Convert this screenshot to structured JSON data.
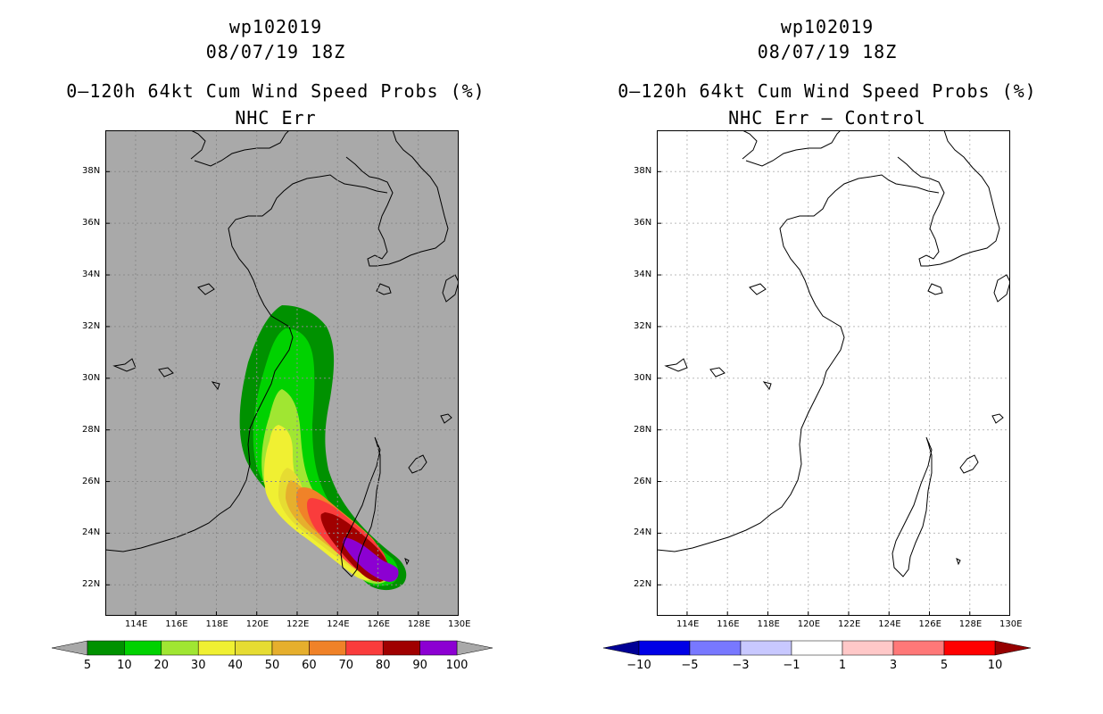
{
  "left": {
    "title_line1": "wp102019",
    "title_line2": "08/07/19 18Z",
    "title_line3": "0–120h 64kt Cum Wind Speed Probs (%)",
    "title_line4": "NHC Err",
    "background_color": "#a9a9a9",
    "colorbar": {
      "colors": [
        "#009100",
        "#00d200",
        "#a0e632",
        "#f0f032",
        "#e6dc32",
        "#e6af2d",
        "#f08228",
        "#fa3c3c",
        "#a00000",
        "#8c00d2"
      ],
      "labels": [
        "5",
        "10",
        "20",
        "30",
        "40",
        "50",
        "60",
        "70",
        "80",
        "90",
        "100"
      ],
      "end_arrow_color": "#a9a9a9"
    }
  },
  "right": {
    "title_line1": "wp102019",
    "title_line2": "08/07/19 18Z",
    "title_line3": "0–120h 64kt Cum Wind Speed Probs (%)",
    "title_line4": "NHC Err – Control",
    "background_color": "#ffffff",
    "colorbar": {
      "colors": [
        "#0000e6",
        "#7878ff",
        "#c8c8ff",
        "#ffffff",
        "#ffc8c8",
        "#ff7878",
        "#ff0000"
      ],
      "labels": [
        "−10",
        "−5",
        "−3",
        "−1",
        "1",
        "3",
        "5",
        "10"
      ],
      "left_arrow_color": "#000096",
      "right_arrow_color": "#960000"
    }
  },
  "axes": {
    "lon_labels": [
      "114E",
      "116E",
      "118E",
      "120E",
      "122E",
      "124E",
      "126E",
      "128E",
      "130E"
    ],
    "lat_labels": [
      "22N",
      "24N",
      "26N",
      "28N",
      "30N",
      "32N",
      "34N",
      "36N",
      "38N"
    ]
  }
}
